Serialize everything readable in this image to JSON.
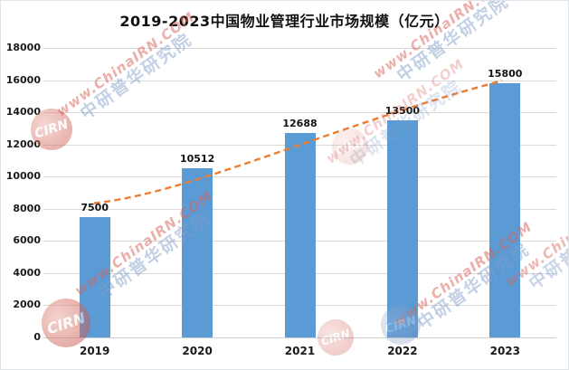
{
  "chart_data": {
    "type": "bar",
    "title": "2019-2023中国物业管理行业市场规模（亿元）",
    "categories": [
      "2019",
      "2020",
      "2021",
      "2022",
      "2023"
    ],
    "values": [
      7500,
      10512,
      12688,
      13500,
      15800
    ],
    "xlabel": "",
    "ylabel": "",
    "ylim": [
      0,
      18000
    ],
    "ytick_interval": 2000,
    "yticks": [
      0,
      2000,
      4000,
      6000,
      8000,
      10000,
      12000,
      14000,
      16000,
      18000
    ],
    "grid": true,
    "legend_position": "none",
    "bar_color": "#5B9BD5",
    "gridline_color": "#d9d9d9",
    "trendline": {
      "style": "dashed",
      "color": "#ED7D31"
    }
  },
  "watermark": {
    "url_text": "www.ChinaIRN.COM",
    "cn_text": "中研普华研究院",
    "logo_text": "CIRN",
    "url_color": "#D8645A",
    "cn_color": "#7D9BC8"
  }
}
